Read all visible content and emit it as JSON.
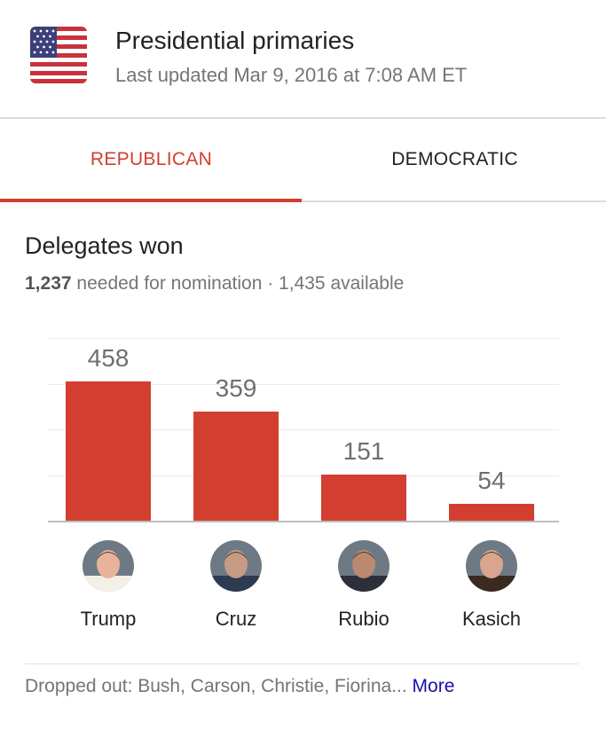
{
  "header": {
    "title": "Presidential primaries",
    "subtitle": "Last updated Mar 9, 2016 at 7:08 AM ET",
    "icon": "us-flag-icon"
  },
  "tabs": [
    {
      "label": "REPUBLICAN",
      "selected": true
    },
    {
      "label": "DEMOCRATIC",
      "selected": false
    }
  ],
  "section": {
    "title": "Delegates won",
    "needed": "1,237",
    "needed_text": "needed for nomination · 1,435 available"
  },
  "colors": {
    "accent": "#d23f31",
    "link": "#1a0dab",
    "secondary_text": "#757575"
  },
  "chart_data": {
    "type": "bar",
    "categories": [
      "Trump",
      "Cruz",
      "Rubio",
      "Kasich"
    ],
    "values": [
      458,
      359,
      151,
      54
    ],
    "data_labels": [
      "458",
      "359",
      "151",
      "54"
    ],
    "ylim": [
      0,
      600
    ],
    "grid": true,
    "legend": "none"
  },
  "candidates": [
    {
      "name": "Trump",
      "avatar": "candidate-photo"
    },
    {
      "name": "Cruz",
      "avatar": "candidate-photo"
    },
    {
      "name": "Rubio",
      "avatar": "candidate-photo"
    },
    {
      "name": "Kasich",
      "avatar": "candidate-photo"
    }
  ],
  "footer": {
    "dropped_text": "Dropped out: Bush, Carson, Christie, Fiorina...",
    "more_label": "More"
  }
}
